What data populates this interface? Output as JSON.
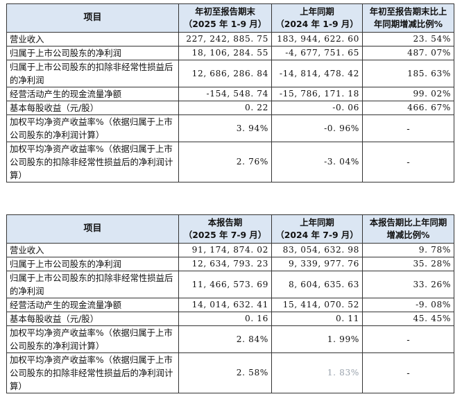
{
  "table1": {
    "headers": [
      {
        "line1": "项目",
        "line2": ""
      },
      {
        "line1": "年初至报告期末",
        "line2": "（2025 年 1-9 月）"
      },
      {
        "line1": "上年同期",
        "line2": "（2024 年 1-9 月）"
      },
      {
        "line1": "年初至报告期末比上",
        "line2": "年同期增减比例%"
      }
    ],
    "rows": [
      {
        "item": "营业收入",
        "current": "227, 242, 885. 75",
        "prior": "183, 944, 622. 60",
        "change": "23. 54%"
      },
      {
        "item": "归属于上市公司股东的净利润",
        "current": "18, 106, 284. 55",
        "prior": "-4, 677, 751. 65",
        "change": "487. 07%"
      },
      {
        "item": "归属于上市公司股东的扣除非经常性损益后的净利润",
        "current": "12, 686, 286. 84",
        "prior": "-14, 814, 478. 42",
        "change": "185. 63%"
      },
      {
        "item": "经营活动产生的现金流量净额",
        "current": "-154, 548. 74",
        "prior": "-15, 786, 171. 18",
        "change": "99. 02%"
      },
      {
        "item": "基本每股收益（元/股）",
        "current": "0. 22",
        "prior": "-0. 06",
        "change": "466. 67%"
      },
      {
        "item": "加权平均净资产收益率%（依据归属于上市公司股东的净利润计算）",
        "current": "3. 94%",
        "prior": "-0. 96%",
        "change": "-"
      },
      {
        "item": "加权平均净资产收益率%（依据归属于上市公司股东的扣除非经常性损益后的净利润计算）",
        "current": "2. 76%",
        "prior": "-3. 04%",
        "change": "-"
      }
    ]
  },
  "table2": {
    "headers": [
      {
        "line1": "项目",
        "line2": ""
      },
      {
        "line1": "本报告期",
        "line2": "（2025 年 7-9 月）"
      },
      {
        "line1": "上年同期",
        "line2": "（2024 年 7-9 月）"
      },
      {
        "line1": "本报告期比上年同期",
        "line2": "增减比例%"
      }
    ],
    "rows": [
      {
        "item": "营业收入",
        "current": "91, 174, 874. 02",
        "prior": "83, 054, 632. 98",
        "change": "9. 78%"
      },
      {
        "item": "归属于上市公司股东的净利润",
        "current": "12, 634, 793. 23",
        "prior": "9, 339, 977. 76",
        "change": "35. 28%"
      },
      {
        "item": "归属于上市公司股东的扣除非经常性损益后的净利润",
        "current": "11, 466, 573. 69",
        "prior": "8, 604, 635. 63",
        "change": "33. 26%"
      },
      {
        "item": "经营活动产生的现金流量净额",
        "current": "14, 014, 632. 41",
        "prior": "15, 414, 070. 52",
        "change": "-9. 08%"
      },
      {
        "item": "基本每股收益（元/股）",
        "current": "0. 16",
        "prior": "0. 11",
        "change": "45. 45%"
      },
      {
        "item": "加权平均净资产收益率%（依据归属于上市公司股东的净利润计算）",
        "current": "2. 84%",
        "prior": "1. 99%",
        "change": "-"
      },
      {
        "item": "加权平均净资产收益率%（依据归属于上市公司股东的扣除非经常性损益后的净利润计算）",
        "current": "2. 58%",
        "prior": "1. 83%",
        "change": "-"
      }
    ]
  }
}
